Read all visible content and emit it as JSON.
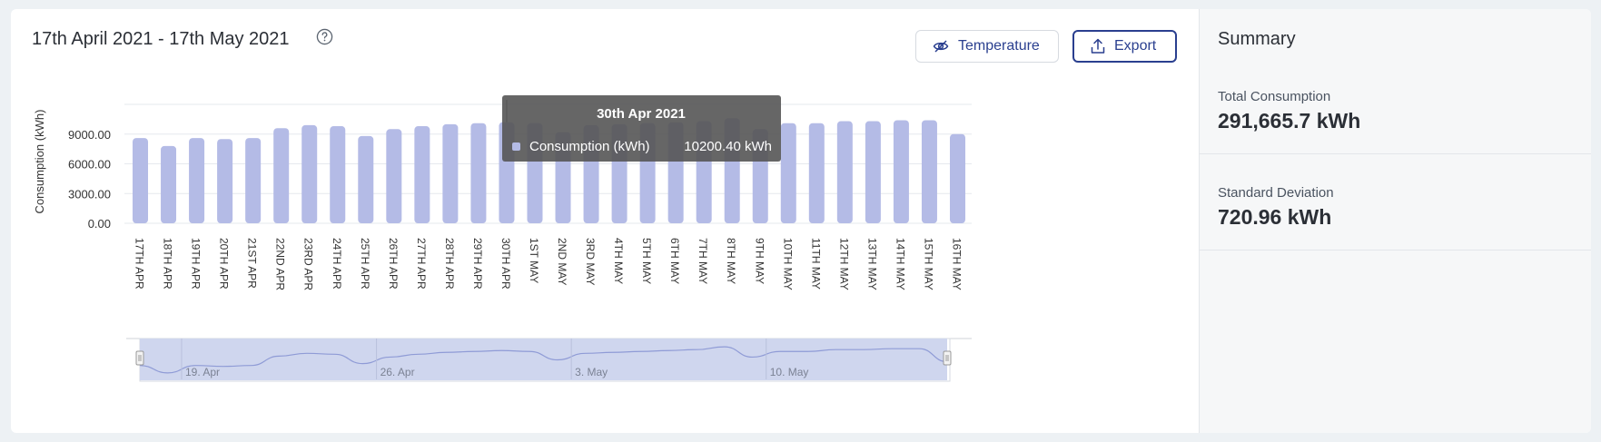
{
  "header": {
    "title": "17th April 2021 - 17th May 2021",
    "help_icon": "question-circle-icon"
  },
  "toolbar": {
    "temperature_label": "Temperature",
    "temperature_icon": "eye-slash-icon",
    "export_label": "Export",
    "export_icon": "upload-icon"
  },
  "summary": {
    "title": "Summary",
    "items": [
      {
        "label": "Total Consumption",
        "value": "291,665.7 kWh"
      },
      {
        "label": "Standard Deviation",
        "value": "720.96 kWh"
      }
    ]
  },
  "chart_data": {
    "type": "bar",
    "ylabel": "Consumption (kWh)",
    "yticks": [
      "0.00",
      "3000.00",
      "6000.00",
      "9000.00"
    ],
    "ylim": [
      0,
      12000
    ],
    "grid": true,
    "color": "#b4bbe6",
    "categories": [
      "17TH APR",
      "18TH APR",
      "19TH APR",
      "20TH APR",
      "21ST APR",
      "22ND APR",
      "23RD APR",
      "24TH APR",
      "25TH APR",
      "26TH APR",
      "27TH APR",
      "28TH APR",
      "29TH APR",
      "30TH APR",
      "1ST MAY",
      "2ND MAY",
      "3RD MAY",
      "4TH MAY",
      "5TH MAY",
      "6TH MAY",
      "7TH MAY",
      "8TH MAY",
      "9TH MAY",
      "10TH MAY",
      "11TH MAY",
      "12TH MAY",
      "13TH MAY",
      "14TH MAY",
      "15TH MAY",
      "16TH MAY"
    ],
    "series": [
      {
        "name": "Consumption (kWh)",
        "values": [
          8600,
          7800,
          8600,
          8500,
          8600,
          9600,
          9900,
          9800,
          8800,
          9500,
          9800,
          10000,
          10100,
          10200,
          10100,
          9200,
          9900,
          10000,
          10100,
          10200,
          10300,
          10600,
          9500,
          10100,
          10100,
          10300,
          10300,
          10400,
          10400,
          9000
        ]
      }
    ],
    "tooltip": {
      "title": "30th Apr 2021",
      "series": "Consumption (kWh)",
      "value": "10200.40 kWh",
      "index": 13
    },
    "navigator": {
      "labels": [
        "19. Apr",
        "26. Apr",
        "3. May",
        "10. May"
      ]
    }
  }
}
